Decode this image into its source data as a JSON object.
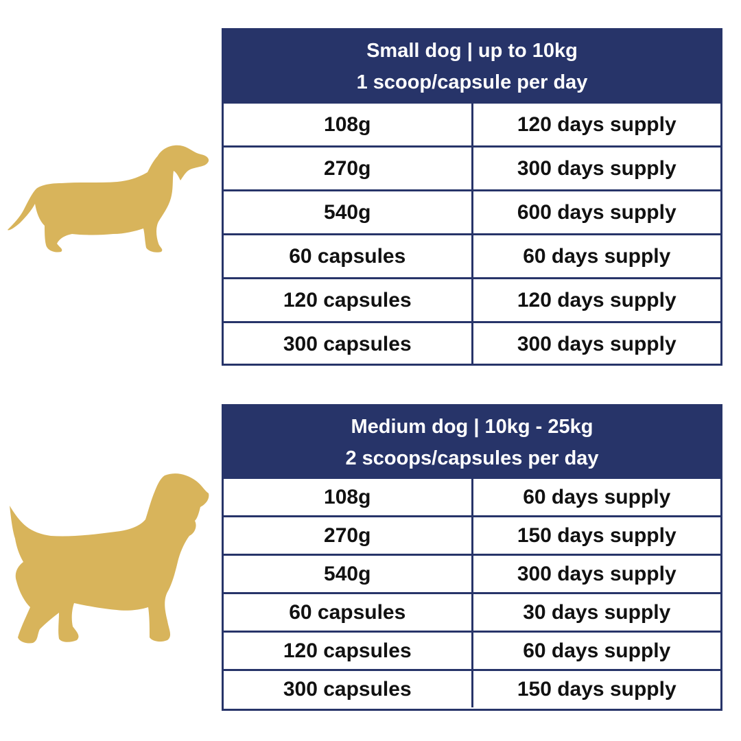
{
  "colors": {
    "header_bg": "#273469",
    "border": "#273469",
    "silhouette": "#D8B45B",
    "text": "#111111"
  },
  "small": {
    "icon": "dachshund-silhouette-icon",
    "title": "Small dog | up to 10kg",
    "dose": "1 scoop/capsule per day",
    "rows": [
      {
        "amount": "108g",
        "supply": "120 days supply"
      },
      {
        "amount": "270g",
        "supply": "300 days supply"
      },
      {
        "amount": "540g",
        "supply": "600 days supply"
      },
      {
        "amount": "60 capsules",
        "supply": "60 days supply"
      },
      {
        "amount": "120 capsules",
        "supply": "120 days supply"
      },
      {
        "amount": "300 capsules",
        "supply": "300 days supply"
      }
    ]
  },
  "medium": {
    "icon": "spaniel-silhouette-icon",
    "title": "Medium dog | 10kg - 25kg",
    "dose": "2 scoops/capsules per day",
    "rows": [
      {
        "amount": "108g",
        "supply": "60 days supply"
      },
      {
        "amount": "270g",
        "supply": "150 days supply"
      },
      {
        "amount": "540g",
        "supply": "300 days supply"
      },
      {
        "amount": "60 capsules",
        "supply": "30 days supply"
      },
      {
        "amount": "120 capsules",
        "supply": "60 days supply"
      },
      {
        "amount": "300 capsules",
        "supply": "150 days supply"
      }
    ]
  }
}
